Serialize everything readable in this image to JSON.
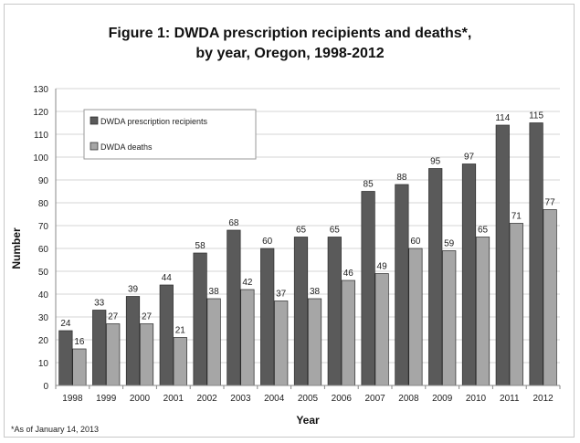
{
  "chart_data": {
    "type": "bar",
    "title": "Figure 1: DWDA prescription recipients and deaths*,",
    "subtitle": "by year, Oregon, 1998-2012",
    "xlabel": "Year",
    "ylabel": "Number",
    "ylim": [
      0,
      130
    ],
    "yticks": [
      0,
      10,
      20,
      30,
      40,
      50,
      60,
      70,
      80,
      90,
      100,
      110,
      120,
      130
    ],
    "grid": true,
    "legend_position": "top-left",
    "categories": [
      "1998",
      "1999",
      "2000",
      "2001",
      "2002",
      "2003",
      "2004",
      "2005",
      "2006",
      "2007",
      "2008",
      "2009",
      "2010",
      "2011",
      "2012"
    ],
    "series": [
      {
        "name": "DWDA prescription recipients",
        "color": "#5a5a5a",
        "values": [
          24,
          33,
          39,
          44,
          58,
          68,
          60,
          65,
          65,
          85,
          88,
          95,
          97,
          114,
          115
        ]
      },
      {
        "name": "DWDA deaths",
        "color": "#a6a6a6",
        "values": [
          16,
          27,
          27,
          21,
          38,
          42,
          37,
          38,
          46,
          49,
          60,
          59,
          65,
          71,
          77
        ]
      }
    ],
    "footnote": "*As of January 14, 2013"
  }
}
